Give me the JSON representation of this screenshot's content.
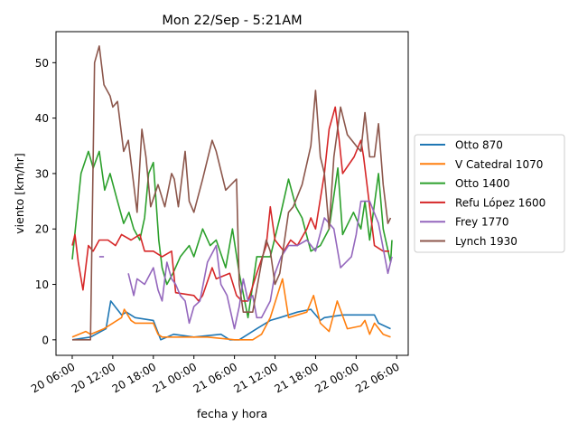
{
  "chart_data": {
    "type": "line",
    "title": "Mon 22/Sep - 5:21AM",
    "xlabel": "fecha y hora",
    "ylabel": "viento [km/hr]",
    "x_unit": "hours since 20 06:00",
    "xlim": [
      -2.4,
      49.7
    ],
    "ylim": [
      -2.8,
      55.6
    ],
    "xticks": [
      {
        "h": 0,
        "label": "20 06:00"
      },
      {
        "h": 6,
        "label": "20 12:00"
      },
      {
        "h": 12,
        "label": "20 18:00"
      },
      {
        "h": 18,
        "label": "21 00:00"
      },
      {
        "h": 24,
        "label": "21 06:00"
      },
      {
        "h": 30,
        "label": "21 12:00"
      },
      {
        "h": 36,
        "label": "21 18:00"
      },
      {
        "h": 42,
        "label": "22 00:00"
      },
      {
        "h": 48,
        "label": "22 06:00"
      }
    ],
    "yticks": [
      0,
      10,
      20,
      30,
      40,
      50
    ],
    "grid": false,
    "legend": "right, outside",
    "series": [
      {
        "name": "Otto 870",
        "color": "#1f77b4",
        "points": [
          [
            0,
            0
          ],
          [
            2.7,
            0.5
          ],
          [
            5,
            2
          ],
          [
            5.7,
            7
          ],
          [
            7.3,
            4.5
          ],
          [
            8,
            5
          ],
          [
            9.3,
            4
          ],
          [
            12,
            3.5
          ],
          [
            13.1,
            0
          ],
          [
            15,
            1
          ],
          [
            18,
            0.5
          ],
          [
            22,
            1
          ],
          [
            23.3,
            0
          ],
          [
            24.7,
            0
          ],
          [
            27.3,
            2
          ],
          [
            29.3,
            3.5
          ],
          [
            30.7,
            4
          ],
          [
            33.3,
            5
          ],
          [
            35.3,
            5.5
          ],
          [
            36.7,
            3.5
          ],
          [
            37.3,
            4
          ],
          [
            40,
            4.5
          ],
          [
            42.7,
            4.5
          ],
          [
            44.7,
            4.5
          ],
          [
            45.3,
            3
          ],
          [
            47.1,
            2
          ]
        ]
      },
      {
        "name": "V Catedral 1070",
        "color": "#ff7f0e",
        "points": [
          [
            0,
            0.5
          ],
          [
            2,
            1.5
          ],
          [
            2.7,
            1
          ],
          [
            4.7,
            2
          ],
          [
            6,
            3
          ],
          [
            7.3,
            4
          ],
          [
            7.7,
            5.5
          ],
          [
            8.7,
            3.5
          ],
          [
            9.3,
            3
          ],
          [
            12,
            3
          ],
          [
            12.7,
            1
          ],
          [
            13.3,
            0.5
          ],
          [
            20,
            0.5
          ],
          [
            24,
            0
          ],
          [
            26.7,
            0
          ],
          [
            28,
            1
          ],
          [
            29.3,
            4
          ],
          [
            31.1,
            11
          ],
          [
            32,
            4
          ],
          [
            34.7,
            5
          ],
          [
            35.7,
            8
          ],
          [
            36.7,
            3
          ],
          [
            38,
            1.5
          ],
          [
            39.2,
            7
          ],
          [
            40.7,
            2
          ],
          [
            42.7,
            2.5
          ],
          [
            43.3,
            3.5
          ],
          [
            44,
            1
          ],
          [
            44.7,
            3
          ],
          [
            46,
            1
          ],
          [
            47.1,
            0.5
          ]
        ]
      },
      {
        "name": "Otto 1400",
        "color": "#2ca02c",
        "points": [
          [
            0,
            14.5
          ],
          [
            1.3,
            30
          ],
          [
            2.4,
            34
          ],
          [
            3.1,
            31
          ],
          [
            4,
            34
          ],
          [
            4.8,
            27
          ],
          [
            5.6,
            30
          ],
          [
            6.7,
            25
          ],
          [
            7.6,
            21
          ],
          [
            8.4,
            23
          ],
          [
            9.1,
            20
          ],
          [
            10,
            18
          ],
          [
            10.7,
            22
          ],
          [
            11.3,
            30
          ],
          [
            12,
            32
          ],
          [
            12.8,
            18
          ],
          [
            13.3,
            13
          ],
          [
            14,
            10
          ],
          [
            14.9,
            12
          ],
          [
            16,
            15
          ],
          [
            17.3,
            17
          ],
          [
            18,
            15
          ],
          [
            19.3,
            20
          ],
          [
            20.4,
            17
          ],
          [
            21.3,
            18
          ],
          [
            22.7,
            13
          ],
          [
            23.7,
            20
          ],
          [
            24.7,
            12
          ],
          [
            26,
            4
          ],
          [
            27.3,
            15
          ],
          [
            29.3,
            15
          ],
          [
            30.7,
            22
          ],
          [
            32,
            29
          ],
          [
            33.1,
            24
          ],
          [
            34,
            22
          ],
          [
            35.3,
            16
          ],
          [
            36.7,
            17
          ],
          [
            38,
            20
          ],
          [
            39.3,
            31
          ],
          [
            40,
            19
          ],
          [
            41.6,
            23
          ],
          [
            42.7,
            20
          ],
          [
            43.3,
            25
          ],
          [
            44,
            18
          ],
          [
            45.3,
            30
          ],
          [
            46,
            20
          ],
          [
            47.1,
            14
          ],
          [
            47.3,
            18
          ]
        ]
      },
      {
        "name": "Refu López 1600",
        "color": "#d62728",
        "points": [
          [
            0,
            17
          ],
          [
            0.4,
            19
          ],
          [
            0.9,
            14
          ],
          [
            1.6,
            9
          ],
          [
            2.4,
            17
          ],
          [
            3.1,
            16
          ],
          [
            4,
            18
          ],
          [
            5.3,
            18
          ],
          [
            6.4,
            17
          ],
          [
            7.3,
            19
          ],
          [
            8.7,
            18
          ],
          [
            10,
            19
          ],
          [
            10.7,
            16
          ],
          [
            12,
            16
          ],
          [
            13.3,
            15
          ],
          [
            14.7,
            16
          ],
          [
            15.3,
            8.5
          ],
          [
            18,
            8
          ],
          [
            18.7,
            7
          ],
          [
            19.3,
            8
          ],
          [
            20.7,
            13
          ],
          [
            21.3,
            11
          ],
          [
            23.3,
            12
          ],
          [
            24.3,
            8
          ],
          [
            25.1,
            7
          ],
          [
            26,
            7
          ],
          [
            27.3,
            12
          ],
          [
            28.7,
            17
          ],
          [
            29.3,
            24
          ],
          [
            30,
            18
          ],
          [
            31.3,
            16
          ],
          [
            32.3,
            18
          ],
          [
            33.3,
            17
          ],
          [
            34.7,
            20
          ],
          [
            35.3,
            22
          ],
          [
            36,
            20
          ],
          [
            37.3,
            30
          ],
          [
            38,
            38
          ],
          [
            38.9,
            42
          ],
          [
            39.5,
            36
          ],
          [
            40,
            30
          ],
          [
            41.7,
            33
          ],
          [
            42.7,
            36
          ],
          [
            43.1,
            33
          ],
          [
            44.7,
            17
          ],
          [
            46,
            16
          ],
          [
            46.9,
            16
          ]
        ]
      },
      {
        "name": "Frey 1770",
        "color": "#9467bd",
        "points": [
          [
            4,
            15
          ],
          [
            4.7,
            15
          ],
          null,
          [
            8.3,
            12
          ],
          [
            9.1,
            8
          ],
          [
            9.6,
            11
          ],
          [
            10.7,
            10
          ],
          [
            12,
            13
          ],
          [
            12.7,
            9
          ],
          [
            13.3,
            7
          ],
          [
            14,
            14
          ],
          [
            14.7,
            11
          ],
          [
            15.3,
            10
          ],
          [
            16,
            8
          ],
          [
            16.7,
            7
          ],
          [
            17.3,
            3
          ],
          [
            18,
            6
          ],
          [
            18.9,
            7
          ],
          [
            20,
            14
          ],
          [
            21.3,
            17
          ],
          [
            22,
            10
          ],
          [
            22.9,
            8
          ],
          [
            24,
            2
          ],
          [
            24.7,
            6
          ],
          [
            25.3,
            11
          ],
          [
            26,
            7
          ],
          [
            26.7,
            8
          ],
          [
            27.3,
            4
          ],
          [
            28,
            4
          ],
          [
            29.3,
            7
          ],
          [
            30,
            12
          ],
          [
            30.9,
            15
          ],
          [
            32,
            17
          ],
          [
            33.3,
            17
          ],
          [
            34.7,
            18
          ],
          [
            36,
            16
          ],
          [
            37.3,
            22
          ],
          [
            38.7,
            20
          ],
          [
            39.7,
            13
          ],
          [
            41.3,
            15
          ],
          [
            42,
            19
          ],
          [
            42.7,
            25
          ],
          [
            44,
            25
          ],
          [
            45.3,
            21
          ],
          [
            46.7,
            12
          ],
          [
            47.3,
            15
          ]
        ]
      },
      {
        "name": "Lynch 1930",
        "color": "#8c564b",
        "points": [
          [
            0,
            0
          ],
          [
            2.7,
            0
          ],
          [
            3.3,
            50
          ],
          [
            4,
            53
          ],
          [
            4.7,
            46
          ],
          [
            5.6,
            44
          ],
          [
            6,
            42
          ],
          [
            6.7,
            43
          ],
          [
            7.6,
            34
          ],
          [
            8.3,
            36
          ],
          [
            9.1,
            28
          ],
          [
            9.6,
            23
          ],
          [
            10.3,
            38
          ],
          [
            10.9,
            33
          ],
          [
            11.6,
            24
          ],
          [
            12.7,
            28
          ],
          [
            13.7,
            24
          ],
          [
            14.7,
            30
          ],
          [
            15.1,
            29
          ],
          [
            15.7,
            24
          ],
          [
            16.7,
            34
          ],
          [
            17.3,
            25
          ],
          [
            18,
            23
          ],
          [
            19.3,
            29
          ],
          [
            20.7,
            36
          ],
          [
            21.3,
            34
          ],
          [
            22.7,
            27
          ],
          [
            24.3,
            29
          ],
          [
            24.7,
            10
          ],
          [
            25.3,
            5
          ],
          [
            26.7,
            5
          ],
          [
            28,
            14
          ],
          [
            28.7,
            18
          ],
          [
            29.3,
            16
          ],
          [
            30,
            10
          ],
          [
            30.7,
            12
          ],
          [
            32,
            23
          ],
          [
            32.7,
            24
          ],
          [
            34,
            28
          ],
          [
            35.3,
            35
          ],
          [
            36,
            45
          ],
          [
            36.7,
            33
          ],
          [
            37.3,
            30
          ],
          [
            38,
            20
          ],
          [
            38.7,
            33
          ],
          [
            39.7,
            42
          ],
          [
            40.7,
            37
          ],
          [
            42,
            35
          ],
          [
            42.7,
            34
          ],
          [
            43.3,
            41
          ],
          [
            44,
            33
          ],
          [
            44.7,
            33
          ],
          [
            45.3,
            39
          ],
          [
            46,
            28
          ],
          [
            46.7,
            21
          ],
          [
            47.1,
            22
          ]
        ]
      }
    ]
  }
}
